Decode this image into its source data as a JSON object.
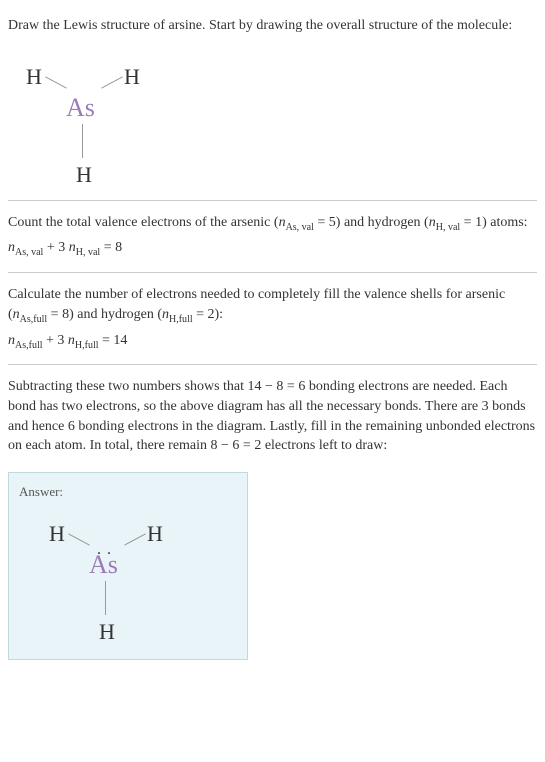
{
  "intro": {
    "text": "Draw the Lewis structure of arsine. Start by drawing the overall structure of the molecule:"
  },
  "molecule1": {
    "h1": "H",
    "h2": "H",
    "h3": "H",
    "as": "As"
  },
  "step1": {
    "text_part1": "Count the total valence electrons of the arsenic (",
    "n_as_var": "n",
    "n_as_sub": "As, val",
    "n_as_eq": " = 5) and hydrogen (",
    "n_h_var": "n",
    "n_h_sub": "H, val",
    "n_h_eq": " = 1) atoms:",
    "formula_n1": "n",
    "formula_sub1": "As, val",
    "formula_plus": " + 3 ",
    "formula_n2": "n",
    "formula_sub2": "H, val",
    "formula_result": " = 8"
  },
  "step2": {
    "text_part1": "Calculate the number of electrons needed to completely fill the valence shells for arsenic (",
    "n_as_var": "n",
    "n_as_sub": "As,full",
    "n_as_eq": " = 8) and hydrogen (",
    "n_h_var": "n",
    "n_h_sub": "H,full",
    "n_h_eq": " = 2):",
    "formula_n1": "n",
    "formula_sub1": "As,full",
    "formula_plus": " + 3 ",
    "formula_n2": "n",
    "formula_sub2": "H,full",
    "formula_result": " = 14"
  },
  "step3": {
    "text": "Subtracting these two numbers shows that 14 − 8 = 6 bonding electrons are needed. Each bond has two electrons, so the above diagram has all the necessary bonds. There are 3 bonds and hence 6 bonding electrons in the diagram. Lastly, fill in the remaining unbonded electrons on each atom. In total, there remain 8 − 6 = 2 electrons left to draw:"
  },
  "answer": {
    "label": "Answer:",
    "h1": "H",
    "h2": "H",
    "h3": "H",
    "as": "As",
    "lone_pair": ". ."
  },
  "colors": {
    "text": "#333333",
    "as_color": "#9b7bb8",
    "bond_color": "#999999",
    "divider": "#cccccc",
    "answer_bg": "#e8f4f8",
    "answer_border": "#c0d8e0"
  },
  "fonts": {
    "body_size": 14,
    "atom_h_size": 22,
    "atom_as_size": 26,
    "sub_size": 10
  }
}
